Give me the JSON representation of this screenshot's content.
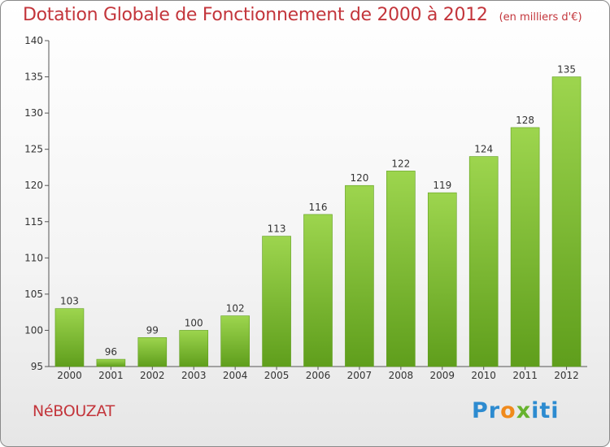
{
  "title": "Dotation Globale de Fonctionnement de 2000 à 2012",
  "unit_note": "(en milliers d'€)",
  "place_name": "NéBOUZAT",
  "logo": {
    "letters": [
      "P",
      "r",
      "o",
      "x",
      "i",
      "t",
      "i"
    ],
    "colors": [
      "#2d8bd0",
      "#2d8bd0",
      "#f08a1c",
      "#67b32e",
      "#2d8bd0",
      "#2d8bd0",
      "#2d8bd0"
    ]
  },
  "chart_data": {
    "type": "bar",
    "title": "Dotation Globale de Fonctionnement de 2000 à 2012",
    "categories": [
      "2000",
      "2001",
      "2002",
      "2003",
      "2004",
      "2005",
      "2006",
      "2007",
      "2008",
      "2009",
      "2010",
      "2011",
      "2012"
    ],
    "values": [
      103,
      96,
      99,
      100,
      102,
      113,
      116,
      120,
      122,
      119,
      124,
      128,
      135
    ],
    "ylim": [
      95,
      140
    ],
    "yticks": [
      95,
      100,
      105,
      110,
      115,
      120,
      125,
      130,
      135,
      140
    ],
    "xlabel": "",
    "ylabel": "",
    "grid": false,
    "bar_color": "#7cc230",
    "bar_color_light": "#9dd54e",
    "bar_color_dark": "#5f9e1c"
  }
}
